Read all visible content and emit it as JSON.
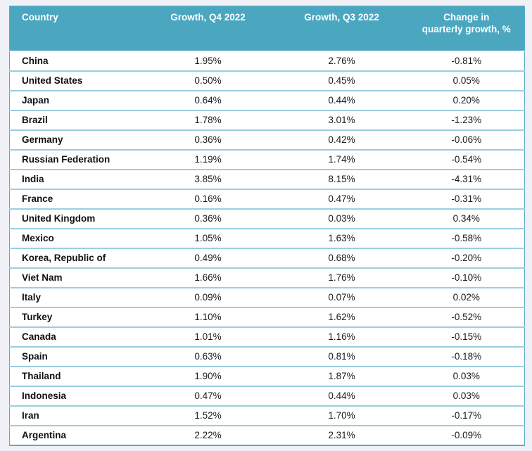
{
  "colors": {
    "page_bg": "#eff1f6",
    "header_bg": "#4ba6c0",
    "header_text": "#ffffff",
    "row_border": "#9bcfdf",
    "outer_border": "#58abc7",
    "cell_text": "#1a1a1a"
  },
  "table": {
    "columns": {
      "country": "Country",
      "q4": "Growth, Q4 2022",
      "q3": "Growth, Q3 2022",
      "change": "Change in quarterly growth, %"
    },
    "rows": [
      {
        "country": "China",
        "q4": "1.95%",
        "q3": "2.76%",
        "change": "-0.81%"
      },
      {
        "country": "United States",
        "q4": "0.50%",
        "q3": "0.45%",
        "change": "0.05%"
      },
      {
        "country": "Japan",
        "q4": "0.64%",
        "q3": "0.44%",
        "change": "0.20%"
      },
      {
        "country": "Brazil",
        "q4": "1.78%",
        "q3": "3.01%",
        "change": "-1.23%"
      },
      {
        "country": "Germany",
        "q4": "0.36%",
        "q3": "0.42%",
        "change": "-0.06%"
      },
      {
        "country": "Russian Federation",
        "q4": "1.19%",
        "q3": "1.74%",
        "change": "-0.54%"
      },
      {
        "country": "India",
        "q4": "3.85%",
        "q3": "8.15%",
        "change": "-4.31%"
      },
      {
        "country": "France",
        "q4": "0.16%",
        "q3": "0.47%",
        "change": "-0.31%"
      },
      {
        "country": "United Kingdom",
        "q4": "0.36%",
        "q3": "0.03%",
        "change": "0.34%"
      },
      {
        "country": "Mexico",
        "q4": "1.05%",
        "q3": "1.63%",
        "change": "-0.58%"
      },
      {
        "country": "Korea, Republic of",
        "q4": "0.49%",
        "q3": "0.68%",
        "change": "-0.20%"
      },
      {
        "country": "Viet Nam",
        "q4": "1.66%",
        "q3": "1.76%",
        "change": "-0.10%"
      },
      {
        "country": "Italy",
        "q4": "0.09%",
        "q3": "0.07%",
        "change": "0.02%"
      },
      {
        "country": "Turkey",
        "q4": "1.10%",
        "q3": "1.62%",
        "change": "-0.52%"
      },
      {
        "country": "Canada",
        "q4": "1.01%",
        "q3": "1.16%",
        "change": "-0.15%"
      },
      {
        "country": "Spain",
        "q4": "0.63%",
        "q3": "0.81%",
        "change": "-0.18%"
      },
      {
        "country": "Thailand",
        "q4": "1.90%",
        "q3": "1.87%",
        "change": "0.03%"
      },
      {
        "country": "Indonesia",
        "q4": "0.47%",
        "q3": "0.44%",
        "change": "0.03%"
      },
      {
        "country": "Iran",
        "q4": "1.52%",
        "q3": "1.70%",
        "change": "-0.17%"
      },
      {
        "country": "Argentina",
        "q4": "2.22%",
        "q3": "2.31%",
        "change": "-0.09%"
      }
    ]
  },
  "chart_data": {
    "type": "table",
    "title": "",
    "categories": [
      "China",
      "United States",
      "Japan",
      "Brazil",
      "Germany",
      "Russian Federation",
      "India",
      "France",
      "United Kingdom",
      "Mexico",
      "Korea, Republic of",
      "Viet Nam",
      "Italy",
      "Turkey",
      "Canada",
      "Spain",
      "Thailand",
      "Indonesia",
      "Iran",
      "Argentina"
    ],
    "series": [
      {
        "name": "Growth, Q4 2022",
        "unit": "%",
        "values": [
          1.95,
          0.5,
          0.64,
          1.78,
          0.36,
          1.19,
          3.85,
          0.16,
          0.36,
          1.05,
          0.49,
          1.66,
          0.09,
          1.1,
          1.01,
          0.63,
          1.9,
          0.47,
          1.52,
          2.22
        ]
      },
      {
        "name": "Growth, Q3 2022",
        "unit": "%",
        "values": [
          2.76,
          0.45,
          0.44,
          3.01,
          0.42,
          1.74,
          8.15,
          0.47,
          0.03,
          1.63,
          0.68,
          1.76,
          0.07,
          1.62,
          1.16,
          0.81,
          1.87,
          0.44,
          1.7,
          2.31
        ]
      },
      {
        "name": "Change in quarterly growth, %",
        "unit": "%",
        "values": [
          -0.81,
          0.05,
          0.2,
          -1.23,
          -0.06,
          -0.54,
          -4.31,
          -0.31,
          0.34,
          -0.58,
          -0.2,
          -0.1,
          0.02,
          -0.52,
          -0.15,
          -0.18,
          0.03,
          0.03,
          -0.17,
          -0.09
        ]
      }
    ]
  }
}
